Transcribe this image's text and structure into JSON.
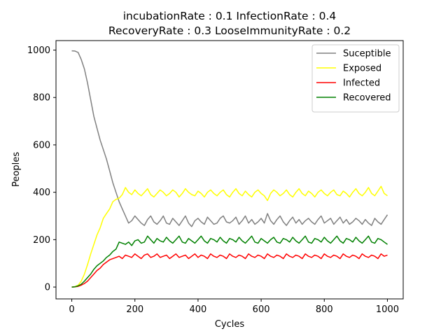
{
  "chart_data": {
    "type": "line",
    "title_line1": "incubationRate : 0.1 InfectionRate : 0.4",
    "title_line2": "RecoveryRate : 0.3 LooseImmunityRate : 0.2",
    "xlabel": "Cycles",
    "ylabel": "Peoples",
    "xlim": [
      -50,
      1050
    ],
    "ylim": [
      -50,
      1040
    ],
    "xticks": [
      0,
      200,
      400,
      600,
      800,
      1000
    ],
    "yticks": [
      0,
      200,
      400,
      600,
      800,
      1000
    ],
    "grid": false,
    "legend_position": "top-right",
    "series": [
      {
        "name": "Suceptible",
        "color": "#808080",
        "x": [
          0,
          10,
          20,
          30,
          40,
          50,
          60,
          70,
          80,
          90,
          100,
          110,
          120,
          130,
          140,
          150,
          160,
          170,
          180,
          190,
          200,
          210,
          220,
          230,
          240,
          250,
          260,
          270,
          280,
          290,
          300,
          310,
          320,
          330,
          340,
          350,
          360,
          370,
          380,
          390,
          400,
          410,
          420,
          430,
          440,
          450,
          460,
          470,
          480,
          490,
          500,
          510,
          520,
          530,
          540,
          550,
          560,
          570,
          580,
          590,
          600,
          610,
          620,
          630,
          640,
          650,
          660,
          670,
          680,
          690,
          700,
          710,
          720,
          730,
          740,
          750,
          760,
          770,
          780,
          790,
          800,
          810,
          820,
          830,
          840,
          850,
          860,
          870,
          880,
          890,
          900,
          910,
          920,
          930,
          940,
          950,
          960,
          970,
          980,
          990,
          1000
        ],
        "values": [
          997,
          996,
          990,
          960,
          920,
          860,
          790,
          720,
          670,
          620,
          580,
          540,
          490,
          440,
          400,
          360,
          330,
          300,
          270,
          280,
          300,
          285,
          270,
          260,
          285,
          300,
          275,
          265,
          280,
          300,
          270,
          265,
          290,
          275,
          260,
          280,
          300,
          270,
          255,
          280,
          290,
          275,
          265,
          295,
          280,
          265,
          270,
          290,
          300,
          275,
          270,
          280,
          295,
          265,
          280,
          300,
          270,
          285,
          265,
          275,
          290,
          270,
          310,
          280,
          265,
          285,
          300,
          275,
          260,
          280,
          295,
          270,
          285,
          265,
          280,
          290,
          275,
          265,
          285,
          300,
          270,
          280,
          290,
          265,
          280,
          295,
          270,
          285,
          265,
          275,
          290,
          280,
          265,
          285,
          270,
          260,
          290,
          275,
          265,
          285,
          305
        ]
      },
      {
        "name": "Exposed",
        "color": "#ffff00",
        "x": [
          0,
          10,
          20,
          30,
          40,
          50,
          60,
          70,
          80,
          90,
          100,
          110,
          120,
          130,
          140,
          150,
          160,
          170,
          180,
          190,
          200,
          210,
          220,
          230,
          240,
          250,
          260,
          270,
          280,
          290,
          300,
          310,
          320,
          330,
          340,
          350,
          360,
          370,
          380,
          390,
          400,
          410,
          420,
          430,
          440,
          450,
          460,
          470,
          480,
          490,
          500,
          510,
          520,
          530,
          540,
          550,
          560,
          570,
          580,
          590,
          600,
          610,
          620,
          630,
          640,
          650,
          660,
          670,
          680,
          690,
          700,
          710,
          720,
          730,
          740,
          750,
          760,
          770,
          780,
          790,
          800,
          810,
          820,
          830,
          840,
          850,
          860,
          870,
          880,
          890,
          900,
          910,
          920,
          930,
          940,
          950,
          960,
          970,
          980,
          990,
          1000
        ],
        "values": [
          0,
          2,
          8,
          25,
          55,
          95,
          140,
          180,
          220,
          250,
          290,
          310,
          330,
          360,
          370,
          375,
          390,
          420,
          400,
          390,
          410,
          395,
          385,
          400,
          415,
          390,
          380,
          395,
          410,
          400,
          385,
          395,
          410,
          400,
          380,
          395,
          415,
          400,
          390,
          385,
          405,
          395,
          380,
          400,
          410,
          395,
          385,
          400,
          410,
          390,
          380,
          400,
          415,
          395,
          385,
          405,
          390,
          380,
          400,
          410,
          395,
          385,
          365,
          395,
          410,
          400,
          385,
          395,
          410,
          390,
          380,
          400,
          415,
          395,
          385,
          405,
          395,
          380,
          400,
          410,
          395,
          385,
          400,
          410,
          390,
          385,
          405,
          395,
          380,
          400,
          415,
          395,
          385,
          400,
          420,
          395,
          385,
          405,
          425,
          395,
          385
        ]
      },
      {
        "name": "Infected",
        "color": "#ff0000",
        "x": [
          0,
          10,
          20,
          30,
          40,
          50,
          60,
          70,
          80,
          90,
          100,
          110,
          120,
          130,
          140,
          150,
          160,
          170,
          180,
          190,
          200,
          210,
          220,
          230,
          240,
          250,
          260,
          270,
          280,
          290,
          300,
          310,
          320,
          330,
          340,
          350,
          360,
          370,
          380,
          390,
          400,
          410,
          420,
          430,
          440,
          450,
          460,
          470,
          480,
          490,
          500,
          510,
          520,
          530,
          540,
          550,
          560,
          570,
          580,
          590,
          600,
          610,
          620,
          630,
          640,
          650,
          660,
          670,
          680,
          690,
          700,
          710,
          720,
          730,
          740,
          750,
          760,
          770,
          780,
          790,
          800,
          810,
          820,
          830,
          840,
          850,
          860,
          870,
          880,
          890,
          900,
          910,
          920,
          930,
          940,
          950,
          960,
          970,
          980,
          990,
          1000
        ],
        "values": [
          0,
          1,
          3,
          8,
          15,
          25,
          40,
          55,
          70,
          80,
          95,
          105,
          115,
          120,
          125,
          130,
          120,
          135,
          130,
          125,
          140,
          130,
          120,
          135,
          140,
          125,
          130,
          140,
          125,
          130,
          135,
          120,
          130,
          140,
          125,
          130,
          135,
          120,
          130,
          140,
          125,
          135,
          130,
          120,
          140,
          130,
          125,
          135,
          130,
          120,
          140,
          130,
          125,
          135,
          130,
          120,
          140,
          130,
          125,
          135,
          130,
          120,
          140,
          130,
          125,
          135,
          130,
          120,
          140,
          130,
          125,
          135,
          130,
          120,
          140,
          130,
          125,
          135,
          130,
          120,
          140,
          130,
          125,
          135,
          130,
          120,
          140,
          130,
          125,
          135,
          130,
          120,
          140,
          130,
          125,
          135,
          130,
          120,
          140,
          130,
          135
        ]
      },
      {
        "name": "Recovered",
        "color": "#008000",
        "x": [
          0,
          10,
          20,
          30,
          40,
          50,
          60,
          70,
          80,
          90,
          100,
          110,
          120,
          130,
          140,
          150,
          160,
          170,
          180,
          190,
          200,
          210,
          220,
          230,
          240,
          250,
          260,
          270,
          280,
          290,
          300,
          310,
          320,
          330,
          340,
          350,
          360,
          370,
          380,
          390,
          400,
          410,
          420,
          430,
          440,
          450,
          460,
          470,
          480,
          490,
          500,
          510,
          520,
          530,
          540,
          550,
          560,
          570,
          580,
          590,
          600,
          610,
          620,
          630,
          640,
          650,
          660,
          670,
          680,
          690,
          700,
          710,
          720,
          730,
          740,
          750,
          760,
          770,
          780,
          790,
          800,
          810,
          820,
          830,
          840,
          850,
          860,
          870,
          880,
          890,
          900,
          910,
          920,
          930,
          940,
          950,
          960,
          970,
          980,
          990,
          1000
        ],
        "values": [
          0,
          1,
          5,
          12,
          25,
          40,
          55,
          75,
          90,
          100,
          110,
          125,
          135,
          150,
          160,
          190,
          185,
          180,
          190,
          175,
          195,
          200,
          185,
          190,
          215,
          200,
          185,
          205,
          195,
          190,
          210,
          195,
          185,
          200,
          215,
          190,
          185,
          205,
          195,
          185,
          200,
          215,
          195,
          185,
          205,
          200,
          190,
          210,
          195,
          185,
          205,
          200,
          190,
          210,
          195,
          185,
          200,
          215,
          190,
          185,
          205,
          195,
          185,
          200,
          210,
          190,
          185,
          205,
          200,
          190,
          210,
          195,
          185,
          200,
          215,
          190,
          185,
          205,
          200,
          190,
          210,
          195,
          185,
          200,
          215,
          195,
          185,
          205,
          200,
          190,
          210,
          195,
          185,
          200,
          215,
          190,
          185,
          205,
          200,
          190,
          180
        ]
      }
    ]
  }
}
